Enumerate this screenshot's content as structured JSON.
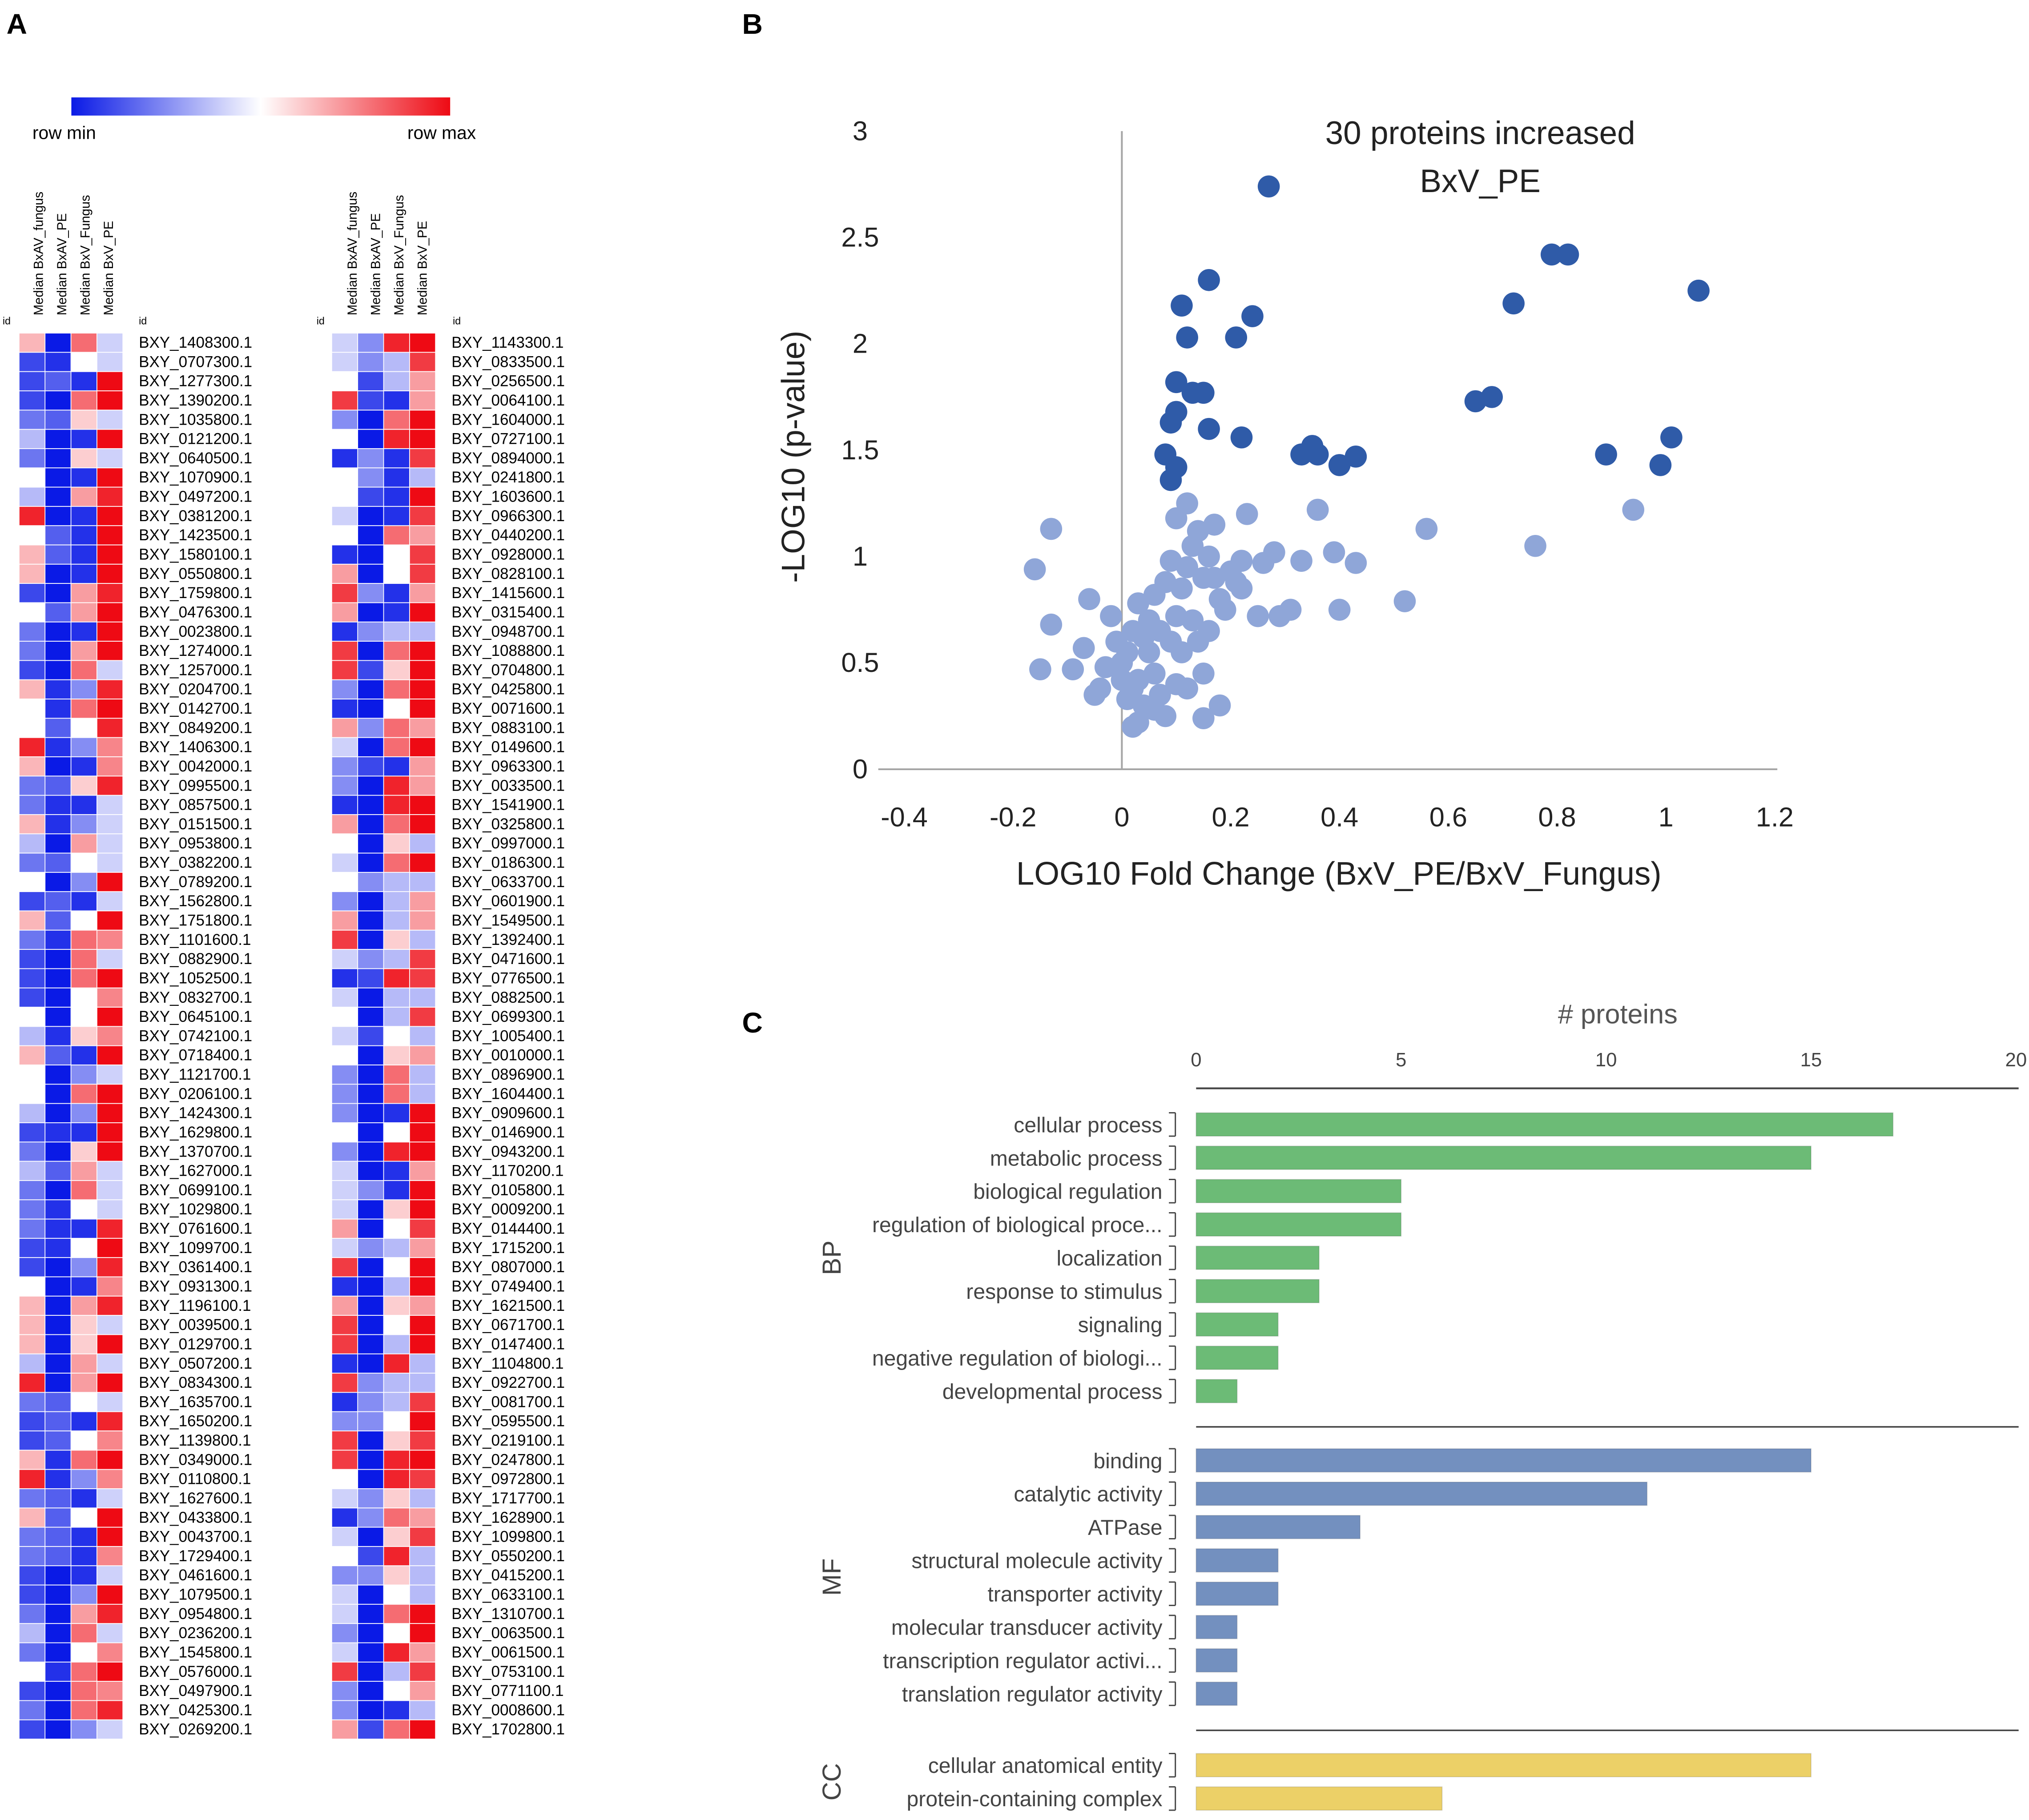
{
  "panels": {
    "a": "A",
    "b": "B",
    "c": "C"
  },
  "heatmap": {
    "scale_min_label": "row min",
    "scale_max_label": "row max",
    "id_label": "id",
    "column_headers": [
      "Median BxAV_fungus",
      "Median BxAV_PE",
      "Median BxV_Fungus",
      "Median BxV_PE"
    ],
    "colors": {
      "min": "#0a1ae6",
      "mid": "#ffffff",
      "max": "#ee0a14"
    },
    "left_ids": [
      "BXY_1408300.1",
      "BXY_0707300.1",
      "BXY_1277300.1",
      "BXY_1390200.1",
      "BXY_1035800.1",
      "BXY_0121200.1",
      "BXY_0640500.1",
      "BXY_1070900.1",
      "BXY_0497200.1",
      "BXY_0381200.1",
      "BXY_1423500.1",
      "BXY_1580100.1",
      "BXY_0550800.1",
      "BXY_1759800.1",
      "BXY_0476300.1",
      "BXY_0023800.1",
      "BXY_1274000.1",
      "BXY_1257000.1",
      "BXY_0204700.1",
      "BXY_0142700.1",
      "BXY_0849200.1",
      "BXY_1406300.1",
      "BXY_0042000.1",
      "BXY_0995500.1",
      "BXY_0857500.1",
      "BXY_0151500.1",
      "BXY_0953800.1",
      "BXY_0382200.1",
      "BXY_0789200.1",
      "BXY_1562800.1",
      "BXY_1751800.1",
      "BXY_1101600.1",
      "BXY_0882900.1",
      "BXY_1052500.1",
      "BXY_0832700.1",
      "BXY_0645100.1",
      "BXY_0742100.1",
      "BXY_0718400.1",
      "BXY_1121700.1",
      "BXY_0206100.1",
      "BXY_1424300.1",
      "BXY_1629800.1",
      "BXY_1370700.1",
      "BXY_1627000.1",
      "BXY_0699100.1",
      "BXY_1029800.1",
      "BXY_0761600.1",
      "BXY_1099700.1",
      "BXY_0361400.1",
      "BXY_0931300.1",
      "BXY_1196100.1",
      "BXY_0039500.1",
      "BXY_0129700.1",
      "BXY_0507200.1",
      "BXY_0834300.1",
      "BXY_1635700.1",
      "BXY_1650200.1",
      "BXY_1139800.1",
      "BXY_0349000.1",
      "BXY_0110800.1",
      "BXY_1627600.1",
      "BXY_0433800.1",
      "BXY_0043700.1",
      "BXY_1729400.1",
      "BXY_0461600.1",
      "BXY_1079500.1",
      "BXY_0954800.1",
      "BXY_0236200.1",
      "BXY_1545800.1",
      "BXY_0576000.1",
      "BXY_0497900.1",
      "BXY_0425300.1",
      "BXY_0269200.1"
    ],
    "right_ids": [
      "BXY_1143300.1",
      "BXY_0833500.1",
      "BXY_0256500.1",
      "BXY_0064100.1",
      "BXY_1604000.1",
      "BXY_0727100.1",
      "BXY_0894000.1",
      "BXY_0241800.1",
      "BXY_1603600.1",
      "BXY_0966300.1",
      "BXY_0440200.1",
      "BXY_0928000.1",
      "BXY_0828100.1",
      "BXY_1415600.1",
      "BXY_0315400.1",
      "BXY_0948700.1",
      "BXY_1088800.1",
      "BXY_0704800.1",
      "BXY_0425800.1",
      "BXY_0071600.1",
      "BXY_0883100.1",
      "BXY_0149600.1",
      "BXY_0963300.1",
      "BXY_0033500.1",
      "BXY_1541900.1",
      "BXY_0325800.1",
      "BXY_0997000.1",
      "BXY_0186300.1",
      "BXY_0633700.1",
      "BXY_0601900.1",
      "BXY_1549500.1",
      "BXY_1392400.1",
      "BXY_0471600.1",
      "BXY_0776500.1",
      "BXY_0882500.1",
      "BXY_0699300.1",
      "BXY_1005400.1",
      "BXY_0010000.1",
      "BXY_0896900.1",
      "BXY_1604400.1",
      "BXY_0909600.1",
      "BXY_0146900.1",
      "BXY_0943200.1",
      "BXY_1170200.1",
      "BXY_0105800.1",
      "BXY_0009200.1",
      "BXY_0144400.1",
      "BXY_1715200.1",
      "BXY_0807000.1",
      "BXY_0749400.1",
      "BXY_1621500.1",
      "BXY_0671700.1",
      "BXY_0147400.1",
      "BXY_1104800.1",
      "BXY_0922700.1",
      "BXY_0081700.1",
      "BXY_0595500.1",
      "BXY_0219100.1",
      "BXY_0247800.1",
      "BXY_0972800.1",
      "BXY_1717700.1",
      "BXY_1628900.1",
      "BXY_1099800.1",
      "BXY_0550200.1",
      "BXY_0415200.1",
      "BXY_0633100.1",
      "BXY_1310700.1",
      "BXY_0063500.1",
      "BXY_0061500.1",
      "BXY_0753100.1",
      "BXY_0771100.1",
      "BXY_0008600.1",
      "BXY_1702800.1"
    ]
  },
  "chart_data": [
    {
      "type": "scatter",
      "title": "30 proteins increased",
      "subtitle": "BxV_PE",
      "xlabel": "LOG10 Fold Change (BxV_PE/BxV_Fungus)",
      "ylabel": "-LOG10 (p-value)",
      "xlim": [
        -0.4,
        1.2
      ],
      "ylim": [
        0,
        3
      ],
      "x_ticks": [
        "-0.4",
        "-0.2",
        "0",
        "0.2",
        "0.4",
        "0.6",
        "0.8",
        "1",
        "1.2"
      ],
      "y_ticks": [
        "0",
        "0.5",
        "1",
        "1.5",
        "2",
        "2.5",
        "3"
      ],
      "colors": {
        "significant": "#2f5ba8",
        "other": "#8fa6d8",
        "axis": "#a6a6a6"
      },
      "series": [
        {
          "name": "significant",
          "points": [
            [
              0.27,
              2.74
            ],
            [
              0.16,
              2.3
            ],
            [
              0.11,
              2.18
            ],
            [
              0.24,
              2.13
            ],
            [
              0.12,
              2.03
            ],
            [
              0.21,
              2.03
            ],
            [
              0.1,
              1.82
            ],
            [
              0.13,
              1.77
            ],
            [
              0.15,
              1.77
            ],
            [
              0.1,
              1.68
            ],
            [
              0.09,
              1.63
            ],
            [
              0.16,
              1.6
            ],
            [
              0.22,
              1.56
            ],
            [
              0.08,
              1.48
            ],
            [
              0.1,
              1.42
            ],
            [
              0.09,
              1.36
            ],
            [
              0.33,
              1.48
            ],
            [
              0.35,
              1.52
            ],
            [
              0.36,
              1.48
            ],
            [
              0.4,
              1.43
            ],
            [
              0.43,
              1.47
            ],
            [
              0.65,
              1.73
            ],
            [
              0.68,
              1.75
            ],
            [
              0.72,
              2.19
            ],
            [
              0.79,
              2.42
            ],
            [
              0.82,
              2.42
            ],
            [
              0.89,
              1.48
            ],
            [
              0.99,
              1.43
            ],
            [
              1.01,
              1.56
            ],
            [
              1.06,
              2.25
            ]
          ]
        },
        {
          "name": "other",
          "points": [
            [
              -0.13,
              1.13
            ],
            [
              -0.16,
              0.94
            ],
            [
              -0.13,
              0.68
            ],
            [
              -0.06,
              0.8
            ],
            [
              -0.15,
              0.47
            ],
            [
              -0.09,
              0.47
            ],
            [
              -0.07,
              0.57
            ],
            [
              -0.04,
              0.38
            ],
            [
              -0.02,
              0.72
            ],
            [
              -0.01,
              0.6
            ],
            [
              0.0,
              0.5
            ],
            [
              0.01,
              0.33
            ],
            [
              0.02,
              0.2
            ],
            [
              0.03,
              0.42
            ],
            [
              0.02,
              0.65
            ],
            [
              0.03,
              0.78
            ],
            [
              0.05,
              0.55
            ],
            [
              0.06,
              0.45
            ],
            [
              0.04,
              0.3
            ],
            [
              0.07,
              0.35
            ],
            [
              0.08,
              0.25
            ],
            [
              0.09,
              0.6
            ],
            [
              0.1,
              0.72
            ],
            [
              0.11,
              0.85
            ],
            [
              0.12,
              0.95
            ],
            [
              0.13,
              1.05
            ],
            [
              0.14,
              1.12
            ],
            [
              0.1,
              1.18
            ],
            [
              0.12,
              1.25
            ],
            [
              0.15,
              0.9
            ],
            [
              0.16,
              1.0
            ],
            [
              0.17,
              1.15
            ],
            [
              0.18,
              0.8
            ],
            [
              0.18,
              0.3
            ],
            [
              0.15,
              0.45
            ],
            [
              0.15,
              0.24
            ],
            [
              0.11,
              0.55
            ],
            [
              0.12,
              0.38
            ],
            [
              0.08,
              0.88
            ],
            [
              0.07,
              0.65
            ],
            [
              0.05,
              0.7
            ],
            [
              0.06,
              0.82
            ],
            [
              0.09,
              0.98
            ],
            [
              0.2,
              0.93
            ],
            [
              0.21,
              0.88
            ],
            [
              0.22,
              0.98
            ],
            [
              0.23,
              1.2
            ],
            [
              0.25,
              0.72
            ],
            [
              0.26,
              0.97
            ],
            [
              0.28,
              1.02
            ],
            [
              0.29,
              0.72
            ],
            [
              0.31,
              0.75
            ],
            [
              0.33,
              0.98
            ],
            [
              0.36,
              1.22
            ],
            [
              0.39,
              1.02
            ],
            [
              0.4,
              0.75
            ],
            [
              0.43,
              0.97
            ],
            [
              0.52,
              0.79
            ],
            [
              0.56,
              1.13
            ],
            [
              0.76,
              1.05
            ],
            [
              0.94,
              1.22
            ],
            [
              0.0,
              0.42
            ],
            [
              -0.03,
              0.48
            ],
            [
              0.01,
              0.55
            ],
            [
              0.04,
              0.62
            ],
            [
              0.02,
              0.38
            ],
            [
              -0.05,
              0.35
            ],
            [
              0.03,
              0.22
            ],
            [
              0.06,
              0.28
            ],
            [
              0.1,
              0.4
            ],
            [
              0.14,
              0.6
            ],
            [
              0.13,
              0.7
            ],
            [
              0.16,
              0.65
            ],
            [
              0.19,
              0.75
            ],
            [
              0.17,
              0.9
            ],
            [
              0.22,
              0.85
            ]
          ]
        }
      ]
    },
    {
      "type": "bar",
      "orientation": "horizontal",
      "title": "# proteins",
      "xlim": [
        0,
        20
      ],
      "x_ticks": [
        "0",
        "5",
        "10",
        "15",
        "20"
      ],
      "groups": [
        {
          "name": "BP",
          "color": "#6cbb76",
          "categories": [
            "cellular process",
            "metabolic process",
            "biological regulation",
            "regulation of biological proce...",
            "localization",
            "response to stimulus",
            "signaling",
            "negative regulation of biologi...",
            "developmental process"
          ],
          "values": [
            17,
            15,
            5,
            5,
            3,
            3,
            2,
            2,
            1
          ]
        },
        {
          "name": "MF",
          "color": "#7390bf",
          "categories": [
            "binding",
            "catalytic activity",
            "ATPase",
            "structural molecule activity",
            "transporter activity",
            "molecular transducer activity",
            "transcription regulator activi...",
            "translation regulator activity"
          ],
          "values": [
            15,
            11,
            4,
            2,
            2,
            1,
            1,
            1
          ]
        },
        {
          "name": "CC",
          "color": "#ecd067",
          "categories": [
            "cellular anatomical entity",
            "protein-containing complex"
          ],
          "values": [
            15,
            6
          ]
        }
      ]
    }
  ]
}
